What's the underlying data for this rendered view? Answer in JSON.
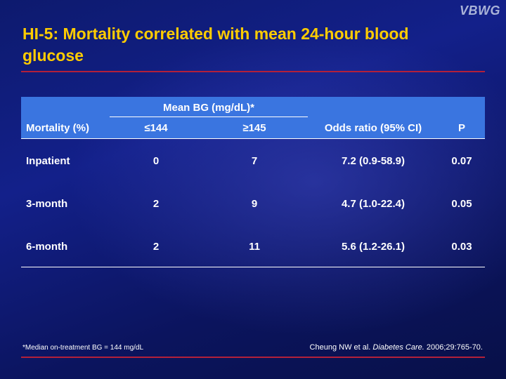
{
  "logo": "VBWG",
  "title": "HI-5: Mortality correlated with mean 24-hour blood glucose",
  "table": {
    "group_header": "Mean BG (mg/dL)*",
    "columns": [
      "Mortality (%)",
      "≤144",
      "≥145",
      "Odds ratio (95% CI)",
      "P"
    ],
    "rows": [
      [
        "Inpatient",
        "0",
        "7",
        "7.2 (0.9-58.9)",
        "0.07"
      ],
      [
        "3-month",
        "2",
        "9",
        "4.7 (1.0-22.4)",
        "0.05"
      ],
      [
        "6-month",
        "2",
        "11",
        "5.6 (1.2-26.1)",
        "0.03"
      ]
    ]
  },
  "footnote": "*Median on-treatment BG = 144 mg/dL",
  "citation": {
    "authors": "Cheung NW et al.",
    "journal": "Diabetes Care.",
    "details": "2006;29:765-70."
  },
  "colors": {
    "title": "#ffcc00",
    "accent_rule": "#b3203a",
    "header_fill": "#3a75e0",
    "background": "#13208a"
  }
}
